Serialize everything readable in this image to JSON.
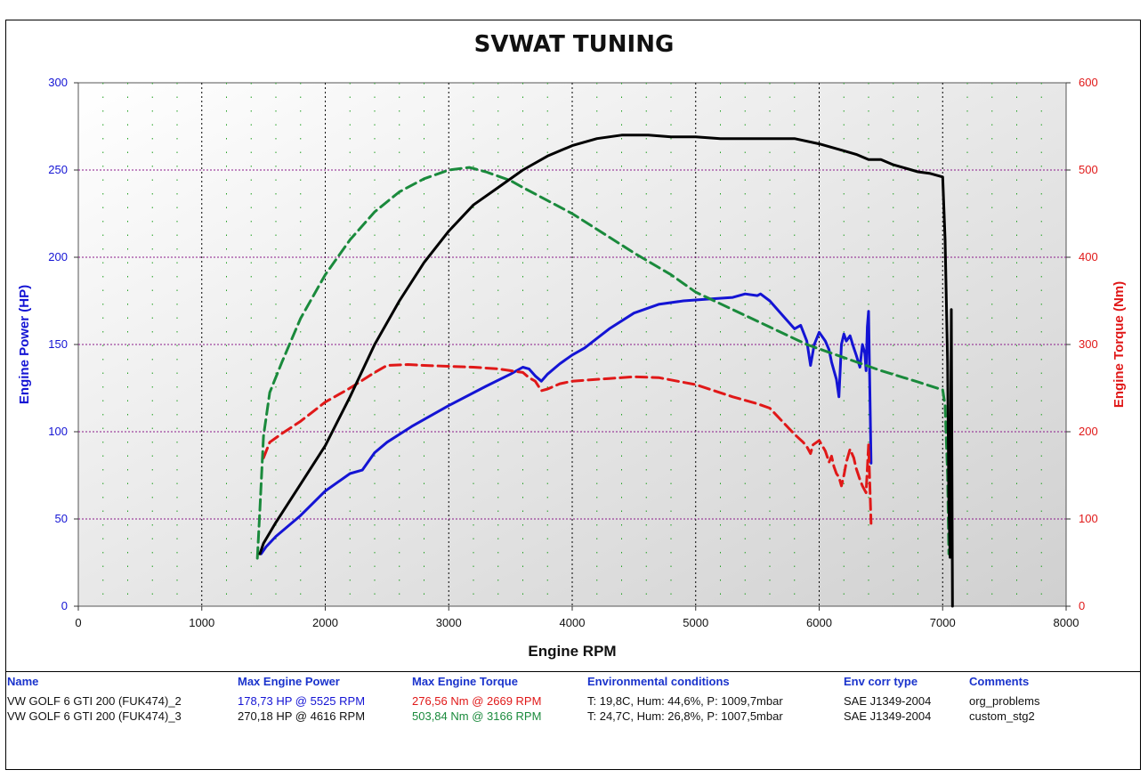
{
  "chart_data": {
    "type": "line",
    "title": "SVWAT TUNING",
    "xlabel": "Engine RPM",
    "ylabel_left": "Engine Power (HP)",
    "ylabel_right": "Engine Torque (Nm)",
    "xlim": [
      0,
      8000
    ],
    "ylim_left": [
      0,
      300
    ],
    "ylim_right": [
      0,
      600
    ],
    "x_ticks": [
      0,
      1000,
      2000,
      3000,
      4000,
      5000,
      6000,
      7000,
      8000
    ],
    "y_ticks_left": [
      0,
      50,
      100,
      150,
      200,
      250,
      300
    ],
    "y_ticks_right": [
      0,
      100,
      200,
      300,
      400,
      500,
      600
    ],
    "grid": true,
    "series": [
      {
        "axis": "left",
        "color": "#1414d4",
        "dash": false,
        "x": [
          1480,
          1520,
          1600,
          1800,
          2000,
          2200,
          2300,
          2400,
          2500,
          2700,
          3000,
          3300,
          3500,
          3600,
          3650,
          3700,
          3750,
          3800,
          3900,
          4000,
          4100,
          4300,
          4500,
          4700,
          4900,
          5100,
          5300,
          5400,
          5500,
          5525,
          5600,
          5700,
          5800,
          5850,
          5900,
          5930,
          5960,
          6000,
          6050,
          6080,
          6100,
          6120,
          6140,
          6160,
          6180,
          6200,
          6220,
          6250,
          6280,
          6300,
          6330,
          6350,
          6370,
          6380,
          6390,
          6400,
          6420
        ],
        "y": [
          30,
          34,
          40,
          52,
          66,
          76,
          78,
          88,
          94,
          103,
          115,
          126,
          133,
          137,
          136,
          132,
          129,
          133,
          139,
          144,
          148,
          159,
          168,
          173,
          175,
          176,
          177,
          179,
          178,
          179,
          175,
          167,
          159,
          161,
          152,
          138,
          150,
          157,
          152,
          147,
          140,
          135,
          130,
          120,
          150,
          156,
          152,
          155,
          148,
          144,
          137,
          150,
          145,
          135,
          160,
          169,
          82
        ]
      },
      {
        "axis": "right",
        "color": "#e01818",
        "dash": true,
        "x": [
          1500,
          1550,
          1650,
          1800,
          2000,
          2200,
          2400,
          2500,
          2669,
          2800,
          3000,
          3200,
          3400,
          3500,
          3600,
          3650,
          3700,
          3750,
          3800,
          3900,
          4000,
          4300,
          4500,
          4700,
          5000,
          5300,
          5500,
          5600,
          5700,
          5800,
          5870,
          5900,
          5930,
          5950,
          5980,
          6000,
          6050,
          6080,
          6100,
          6120,
          6140,
          6160,
          6180,
          6200,
          6220,
          6250,
          6280,
          6300,
          6330,
          6350,
          6380,
          6400,
          6420
        ],
        "y": [
          170,
          188,
          198,
          212,
          234,
          250,
          268,
          276,
          277,
          276,
          275,
          274,
          272,
          270,
          268,
          262,
          258,
          247,
          249,
          255,
          258,
          261,
          263,
          262,
          254,
          240,
          232,
          227,
          212,
          197,
          188,
          183,
          175,
          185,
          188,
          190,
          178,
          165,
          172,
          160,
          152,
          148,
          138,
          150,
          165,
          180,
          170,
          158,
          145,
          138,
          130,
          185,
          95
        ]
      },
      {
        "axis": "right",
        "color": "#1a8a3c",
        "dash": true,
        "x": [
          1450,
          1470,
          1500,
          1550,
          1650,
          1800,
          2000,
          2200,
          2400,
          2600,
          2800,
          3000,
          3166,
          3300,
          3500,
          3600,
          3800,
          4000,
          4200,
          4500,
          4800,
          5000,
          5300,
          5600,
          5900,
          6200,
          6500,
          6800,
          7000,
          7020,
          7040,
          7050
        ],
        "y": [
          55,
          110,
          195,
          245,
          280,
          330,
          380,
          420,
          452,
          475,
          490,
          500,
          503,
          498,
          488,
          480,
          465,
          450,
          432,
          405,
          380,
          360,
          340,
          320,
          300,
          285,
          270,
          257,
          248,
          230,
          150,
          60
        ]
      },
      {
        "axis": "left",
        "color": "#000000",
        "dash": false,
        "x": [
          1470,
          1500,
          1600,
          1800,
          2000,
          2200,
          2400,
          2600,
          2800,
          3000,
          3200,
          3400,
          3600,
          3800,
          4000,
          4200,
          4400,
          4616,
          4800,
          5000,
          5200,
          5500,
          5700,
          5800,
          6000,
          6200,
          6300,
          6400,
          6500,
          6600,
          6700,
          6800,
          6900,
          7000,
          7020,
          7040,
          7050,
          7060,
          7070,
          7080
        ],
        "y": [
          30,
          36,
          48,
          70,
          92,
          120,
          150,
          175,
          197,
          215,
          230,
          240,
          250,
          258,
          264,
          268,
          270,
          270,
          269,
          269,
          268,
          268,
          268,
          268,
          265,
          261,
          259,
          256,
          256,
          253,
          251,
          249,
          248,
          246,
          210,
          140,
          60,
          28,
          170,
          0
        ]
      }
    ]
  },
  "table": {
    "headers": [
      "Name",
      "Max Engine Power",
      "Max Engine Torque",
      "Environmental conditions",
      "Env corr type",
      "Comments"
    ],
    "rows": [
      {
        "name": "VW GOLF 6 GTI 200 (FUK474)_2",
        "power": "178,73 HP @ 5525 RPM",
        "torque": "276,56 Nm @ 2669 RPM",
        "env": "T: 19,8C, Hum: 44,6%, P: 1009,7mbar",
        "corr": "SAE J1349-2004",
        "comment": "org_problems",
        "power_color": "#1414d4",
        "torque_color": "#e01818"
      },
      {
        "name": "VW GOLF 6 GTI 200 (FUK474)_3",
        "power": "270,18 HP @ 4616 RPM",
        "torque": "503,84 Nm @ 3166 RPM",
        "env": "T: 24,7C, Hum: 26,8%, P: 1007,5mbar",
        "corr": "SAE J1349-2004",
        "comment": "custom_stg2",
        "power_color": "#111111",
        "torque_color": "#1a8a3c"
      }
    ]
  }
}
